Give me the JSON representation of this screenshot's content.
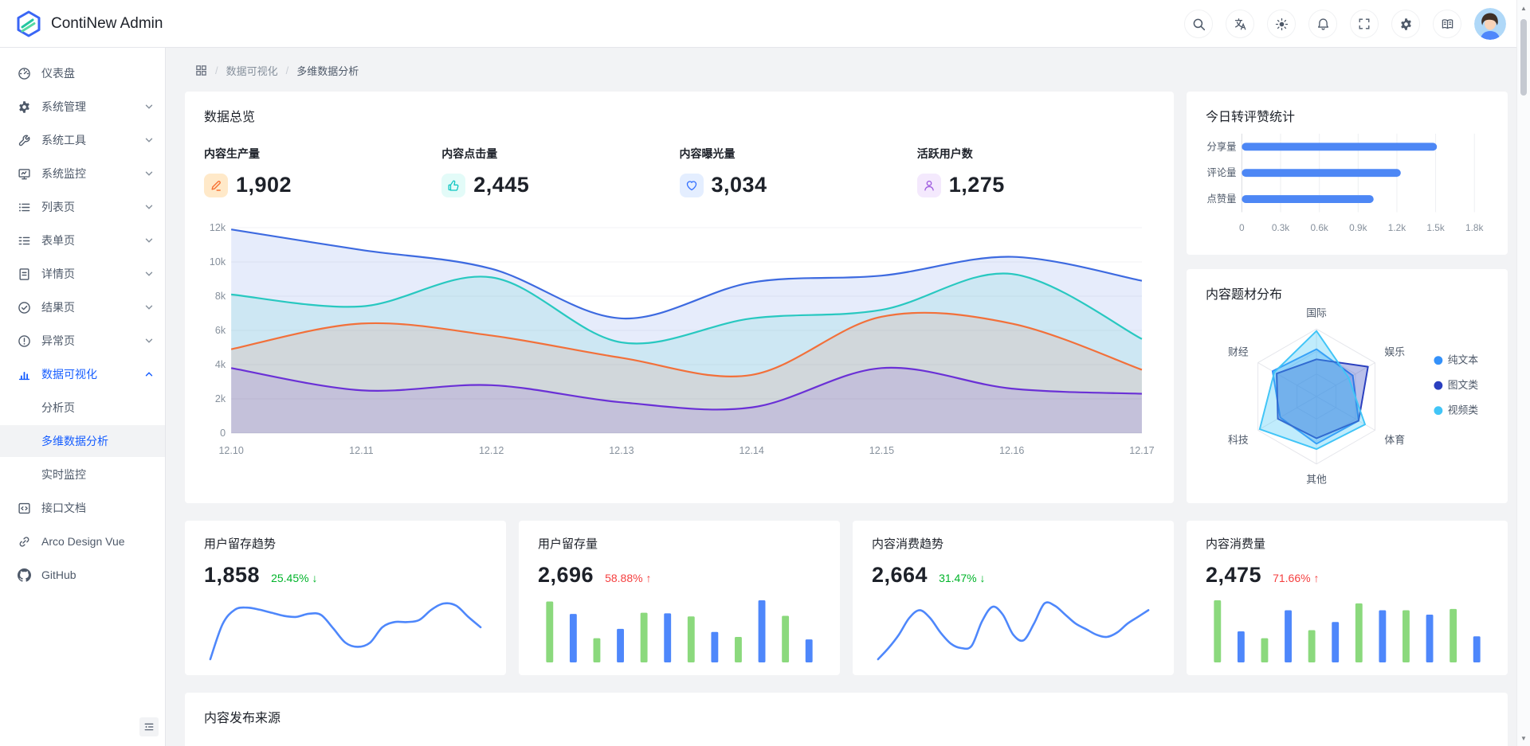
{
  "app": {
    "title": "ContiNew Admin"
  },
  "header": {
    "actions": [
      {
        "label": "search",
        "icon": "search-icon"
      },
      {
        "label": "language",
        "icon": "translate-icon"
      },
      {
        "label": "theme",
        "icon": "sun-icon"
      },
      {
        "label": "notifications",
        "icon": "bell-icon"
      },
      {
        "label": "fullscreen",
        "icon": "fullscreen-icon"
      },
      {
        "label": "settings",
        "icon": "gear-icon"
      },
      {
        "label": "docs",
        "icon": "book-icon"
      }
    ]
  },
  "sidebar": {
    "items": [
      {
        "label": "仪表盘"
      },
      {
        "label": "系统管理"
      },
      {
        "label": "系统工具"
      },
      {
        "label": "系统监控"
      },
      {
        "label": "列表页"
      },
      {
        "label": "表单页"
      },
      {
        "label": "详情页"
      },
      {
        "label": "结果页"
      },
      {
        "label": "异常页"
      },
      {
        "label": "数据可视化"
      },
      {
        "label": "分析页"
      },
      {
        "label": "多维数据分析"
      },
      {
        "label": "实时监控"
      },
      {
        "label": "接口文档"
      },
      {
        "label": "Arco Design Vue"
      },
      {
        "label": "GitHub"
      }
    ]
  },
  "breadcrumb": {
    "items": [
      "数据可视化",
      "多维数据分析"
    ]
  },
  "overview": {
    "title": "数据总览",
    "stats": [
      {
        "label": "内容生产量",
        "value": "1,902",
        "icon": "pencil-icon",
        "color": "#F77234",
        "bg": "#FFE9C9"
      },
      {
        "label": "内容点击量",
        "value": "2,445",
        "icon": "thumb-up-icon",
        "color": "#0FC6C2",
        "bg": "#E3FBF8"
      },
      {
        "label": "内容曝光量",
        "value": "3,034",
        "icon": "heart-icon",
        "color": "#3370FF",
        "bg": "#E4EEFF"
      },
      {
        "label": "活跃用户数",
        "value": "1,275",
        "icon": "user-icon",
        "color": "#A05EE0",
        "bg": "#F4E9FD"
      }
    ]
  },
  "right_panel": {
    "engagement_title": "今日转评赞统计",
    "radar_title": "内容题材分布"
  },
  "kpi_cards": [
    {
      "title": "用户留存趋势",
      "value": "1,858",
      "delta": "25.45%",
      "arrow": "↓",
      "delta_color": "#00B42A"
    },
    {
      "title": "用户留存量",
      "value": "2,696",
      "delta": "58.88%",
      "arrow": "↑",
      "delta_color": "#F53F3F"
    },
    {
      "title": "内容消费趋势",
      "value": "2,664",
      "delta": "31.47%",
      "arrow": "↓",
      "delta_color": "#00B42A"
    },
    {
      "title": "内容消费量",
      "value": "2,475",
      "delta": "71.66%",
      "arrow": "↑",
      "delta_color": "#F53F3F"
    }
  ],
  "bottom_card": {
    "title": "内容发布来源"
  },
  "chart_data": [
    {
      "id": "overview-area",
      "type": "area",
      "title": "数据总览",
      "x": [
        "12.10",
        "12.11",
        "12.12",
        "12.13",
        "12.14",
        "12.15",
        "12.16",
        "12.17"
      ],
      "ylim": [
        0,
        12000
      ],
      "yticks": [
        "0",
        "2k",
        "4k",
        "6k",
        "8k",
        "10k",
        "12k"
      ],
      "grid": true,
      "legend": false,
      "series": [
        {
          "name": "series-blue",
          "color": "#3D6AE0",
          "values": [
            11900,
            10700,
            9600,
            6700,
            8800,
            9200,
            10300,
            8900
          ]
        },
        {
          "name": "series-teal",
          "color": "#28C8C0",
          "values": [
            8100,
            7400,
            9100,
            5300,
            6700,
            7200,
            9300,
            5500
          ]
        },
        {
          "name": "series-orange",
          "color": "#F2703A",
          "values": [
            4900,
            6400,
            5700,
            4400,
            3400,
            6800,
            6400,
            3700
          ]
        },
        {
          "name": "series-purple",
          "color": "#6A30D6",
          "values": [
            3800,
            2500,
            2800,
            1800,
            1500,
            3800,
            2600,
            2300
          ]
        }
      ]
    },
    {
      "id": "engagement-bars",
      "type": "bar",
      "orientation": "horizontal",
      "title": "今日转评赞统计",
      "categories": [
        "分享量",
        "评论量",
        "点赞量"
      ],
      "values": [
        1510,
        1230,
        1020
      ],
      "xlim": [
        0,
        1800
      ],
      "xticks": [
        "0",
        "0.3k",
        "0.6k",
        "0.9k",
        "1.2k",
        "1.5k",
        "1.8k"
      ],
      "bar_color": "#4D87F5",
      "grid": true
    },
    {
      "id": "topic-radar",
      "type": "radar",
      "title": "内容题材分布",
      "axes": [
        "国际",
        "娱乐",
        "体育",
        "其他",
        "科技",
        "财经"
      ],
      "max": 100,
      "legend_position": "right",
      "series": [
        {
          "name": "纯文本",
          "color": "#3491FA",
          "values": [
            70,
            62,
            72,
            70,
            62,
            75
          ]
        },
        {
          "name": "图文类",
          "color": "#2A3FBF",
          "values": [
            55,
            88,
            72,
            62,
            66,
            68
          ]
        },
        {
          "name": "视频类",
          "color": "#41C5F7",
          "values": [
            97,
            55,
            83,
            78,
            97,
            72
          ]
        }
      ]
    },
    {
      "id": "kpi-line-1",
      "type": "line",
      "color": "#4E87FB",
      "values": [
        14,
        48,
        62,
        64,
        62,
        59,
        56,
        55,
        58,
        57,
        44,
        30,
        26,
        30,
        45,
        50,
        50,
        52,
        62,
        68,
        66,
        55,
        45
      ]
    },
    {
      "id": "kpi-bars-1",
      "type": "bar",
      "colors": [
        "#8BD97D",
        "#4E87FB"
      ],
      "values": [
        98,
        78,
        39,
        54,
        80,
        79,
        74,
        49,
        41,
        100,
        75,
        37
      ]
    },
    {
      "id": "kpi-line-2",
      "type": "line",
      "color": "#4E87FB",
      "values": [
        8,
        18,
        30,
        45,
        52,
        45,
        32,
        22,
        18,
        20,
        42,
        55,
        48,
        30,
        25,
        40,
        58,
        56,
        48,
        40,
        35,
        30,
        28,
        32,
        40,
        46,
        52
      ]
    },
    {
      "id": "kpi-bars-2",
      "type": "bar",
      "colors": [
        "#8BD97D",
        "#4E87FB"
      ],
      "values": [
        100,
        50,
        39,
        84,
        52,
        65,
        95,
        84,
        84,
        77,
        86,
        42
      ]
    }
  ]
}
